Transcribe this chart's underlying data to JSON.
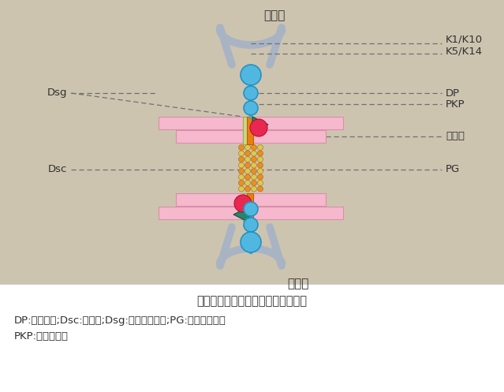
{
  "bg_color": "#cdc4b0",
  "cell_color": "#a8b4c4",
  "membrane_color": "#f5b8cc",
  "membrane_border_color": "#d890a8",
  "orange_color": "#e88010",
  "green_color": "#c8d888",
  "green_border": "#90b050",
  "teal_color": "#208868",
  "cyan_color": "#50b8e0",
  "cyan_border": "#2890c0",
  "red_color": "#e82850",
  "red_border": "#b01030",
  "dot_orange": "#e89020",
  "dot_yellow": "#d8cc50",
  "line_color": "#50a0d0",
  "dash_color": "#707070",
  "text_color": "#303030",
  "white": "#ffffff",
  "title": "桥粒的主要超微结构特征及分子组成",
  "caption1": "DP:桥班蛋白;Dsc:桥黏素;Dsg:桥粒芯糖蛋白;PG:桥班珠蛋白；",
  "caption2": "PKP:班菲素蛋白",
  "lbl_top_cell": "细胞内",
  "lbl_bot_cell": "细胞内",
  "lbl_dsg": "Dsg",
  "lbl_dsc": "Dsc",
  "lbl_dp": "DP",
  "lbl_pkp": "PKP",
  "lbl_membrane": "细胞膜",
  "lbl_pg": "PG",
  "lbl_k1k10": "K1/K10",
  "lbl_k5k14": "K5/K14"
}
